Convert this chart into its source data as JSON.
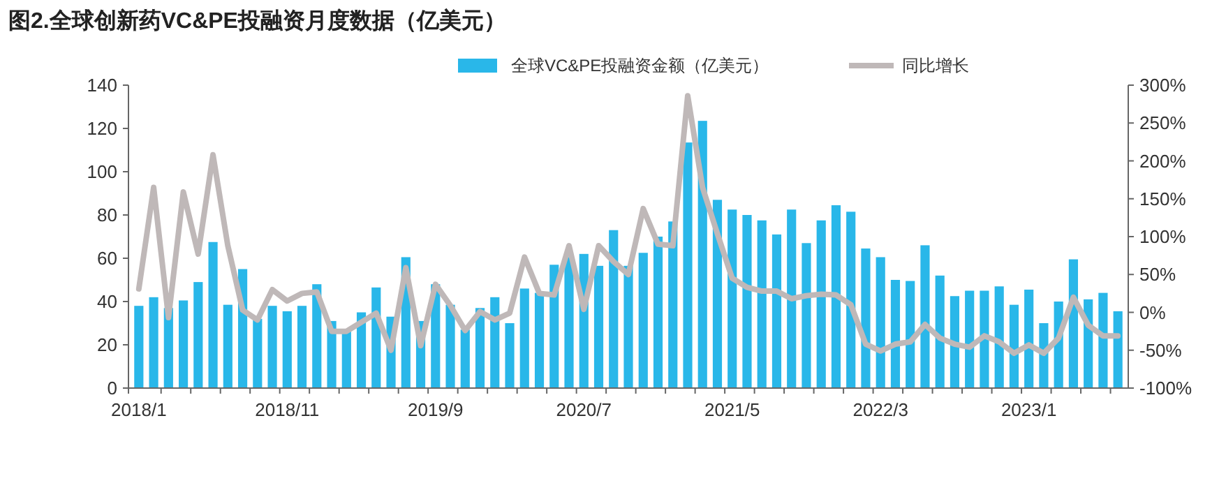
{
  "chart_data": {
    "type": "bar",
    "title": "图2.全球创新药VC&PE投融资月度数据（亿美元）",
    "categories": [
      "2018/1",
      null,
      null,
      null,
      null,
      null,
      null,
      null,
      null,
      null,
      "2018/11",
      null,
      null,
      null,
      null,
      null,
      null,
      null,
      null,
      null,
      "2019/9",
      null,
      null,
      null,
      null,
      null,
      null,
      null,
      null,
      null,
      "2020/7",
      null,
      null,
      null,
      null,
      null,
      null,
      null,
      null,
      null,
      "2021/5",
      null,
      null,
      null,
      null,
      null,
      null,
      null,
      null,
      null,
      "2022/3",
      null,
      null,
      null,
      null,
      null,
      null,
      null,
      null,
      null,
      "2023/1",
      null,
      null,
      null,
      null,
      null,
      null
    ],
    "series": [
      {
        "name": "全球VC&PE投融资金额（亿美元）",
        "color": "#29b7e9",
        "values": [
          38,
          42,
          37,
          40.5,
          49,
          67.5,
          38.5,
          55,
          32,
          38,
          35.5,
          38,
          48,
          31,
          27,
          35,
          46.5,
          33,
          60.5,
          31,
          48,
          38.5,
          27,
          37,
          42,
          30,
          46,
          44,
          57,
          60.5,
          62,
          56.5,
          73,
          56.5,
          62.5,
          70,
          77,
          113.5,
          123.5,
          87,
          82.5,
          80,
          77.5,
          71,
          82.5,
          67,
          77.5,
          84.5,
          81.5,
          64.5,
          60.5,
          50,
          49.5,
          66,
          52,
          42.5,
          45,
          45,
          47,
          38.5,
          45.5,
          30,
          40,
          59.5,
          41,
          44,
          35.5
        ]
      },
      {
        "name": "同比增长",
        "type": "line",
        "axis": "y2",
        "color": "#bfb8b8",
        "values": [
          31,
          165,
          -7,
          159,
          77,
          208,
          88,
          3,
          -10,
          30,
          15,
          25,
          27,
          -25,
          -25,
          -13,
          -1,
          -50,
          59,
          -44,
          37,
          9,
          -24,
          1,
          -10,
          -1,
          73,
          25,
          23,
          88,
          4,
          88,
          67,
          50,
          137,
          90,
          88,
          286,
          165,
          104,
          45,
          33,
          28,
          28,
          18,
          22,
          24,
          23,
          10,
          -42,
          -51,
          -42,
          -39,
          -16,
          -34,
          -42,
          -46,
          -31,
          -39,
          -54,
          -43,
          -54,
          -34,
          20,
          -17,
          -31,
          -31
        ]
      }
    ],
    "ylim": [
      0,
      140
    ],
    "yticks": [
      0,
      20,
      40,
      60,
      80,
      100,
      120,
      140
    ],
    "y2lim": [
      -100,
      300
    ],
    "y2ticks": [
      {
        "value": -100,
        "label": "-100%"
      },
      {
        "value": -50,
        "label": "-50%"
      },
      {
        "value": 0,
        "label": "0%"
      },
      {
        "value": 50,
        "label": "50%"
      },
      {
        "value": 100,
        "label": "100%"
      },
      {
        "value": 150,
        "label": "150%"
      },
      {
        "value": 200,
        "label": "200%"
      },
      {
        "value": 250,
        "label": "250%"
      },
      {
        "value": 300,
        "label": "300%"
      }
    ],
    "grid": false,
    "legend": "top",
    "line_style": "solid",
    "marker": "none"
  }
}
